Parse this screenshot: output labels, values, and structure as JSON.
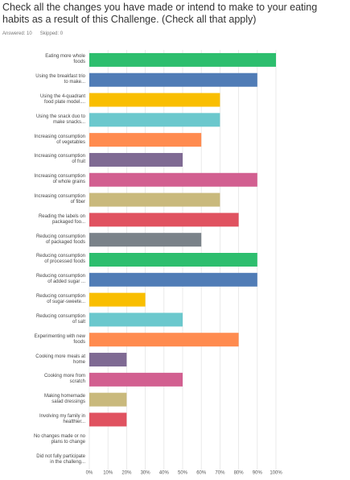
{
  "chart_data": {
    "type": "bar",
    "orientation": "horizontal",
    "title": "Check all the changes you have made or intend to make to your eating habits as a result of this Challenge. (Check all that apply)",
    "answered": "Answered: 10",
    "skipped": "Skipped: 0",
    "categories": [
      "Eating more whole foods",
      "Using the breakfast trio to make...",
      "Using the 4-quadrant food plate model....",
      "Using the snack duo to make snacks...",
      "Increasing consumption of vegetables",
      "Increasing consumption of fruit",
      "Increasing consumption of whole grains",
      "Increasing consumption of fiber",
      "Reading the labels on packaged foo...",
      "Reducing consumption of packaged foods",
      "Reducing consumption of processed foods",
      "Reducing consumption of added sugar ...",
      "Reducing consumption of sugar-sweete...",
      "Reducing consumption of salt",
      "Experimenting with new foods",
      "Cooking more meals at home",
      "Cooking more from scratch",
      "Making homemade salad dressings",
      "Involving my family in healthier...",
      "No changes made or no plans to change",
      "Did not fully participate in the challeng..."
    ],
    "values": [
      100,
      90,
      70,
      70,
      60,
      50,
      90,
      70,
      80,
      60,
      90,
      90,
      30,
      50,
      80,
      20,
      50,
      20,
      20,
      0,
      0
    ],
    "colors": [
      "#2dbe6e",
      "#507cb6",
      "#f9be00",
      "#6bc8cd",
      "#ff8b4f",
      "#7f6a93",
      "#d25f90",
      "#c9b97c",
      "#e05260",
      "#7a8289"
    ],
    "xlim": [
      0,
      100
    ],
    "xticks": [
      {
        "value": 0,
        "label": "0%"
      },
      {
        "value": 10,
        "label": "10%"
      },
      {
        "value": 20,
        "label": "20%"
      },
      {
        "value": 30,
        "label": "30%"
      },
      {
        "value": 40,
        "label": "40%"
      },
      {
        "value": 50,
        "label": "50%"
      },
      {
        "value": 60,
        "label": "60%"
      },
      {
        "value": 70,
        "label": "70%"
      },
      {
        "value": 80,
        "label": "80%"
      },
      {
        "value": 90,
        "label": "90%"
      },
      {
        "value": 100,
        "label": "100%"
      }
    ],
    "grid": true
  }
}
